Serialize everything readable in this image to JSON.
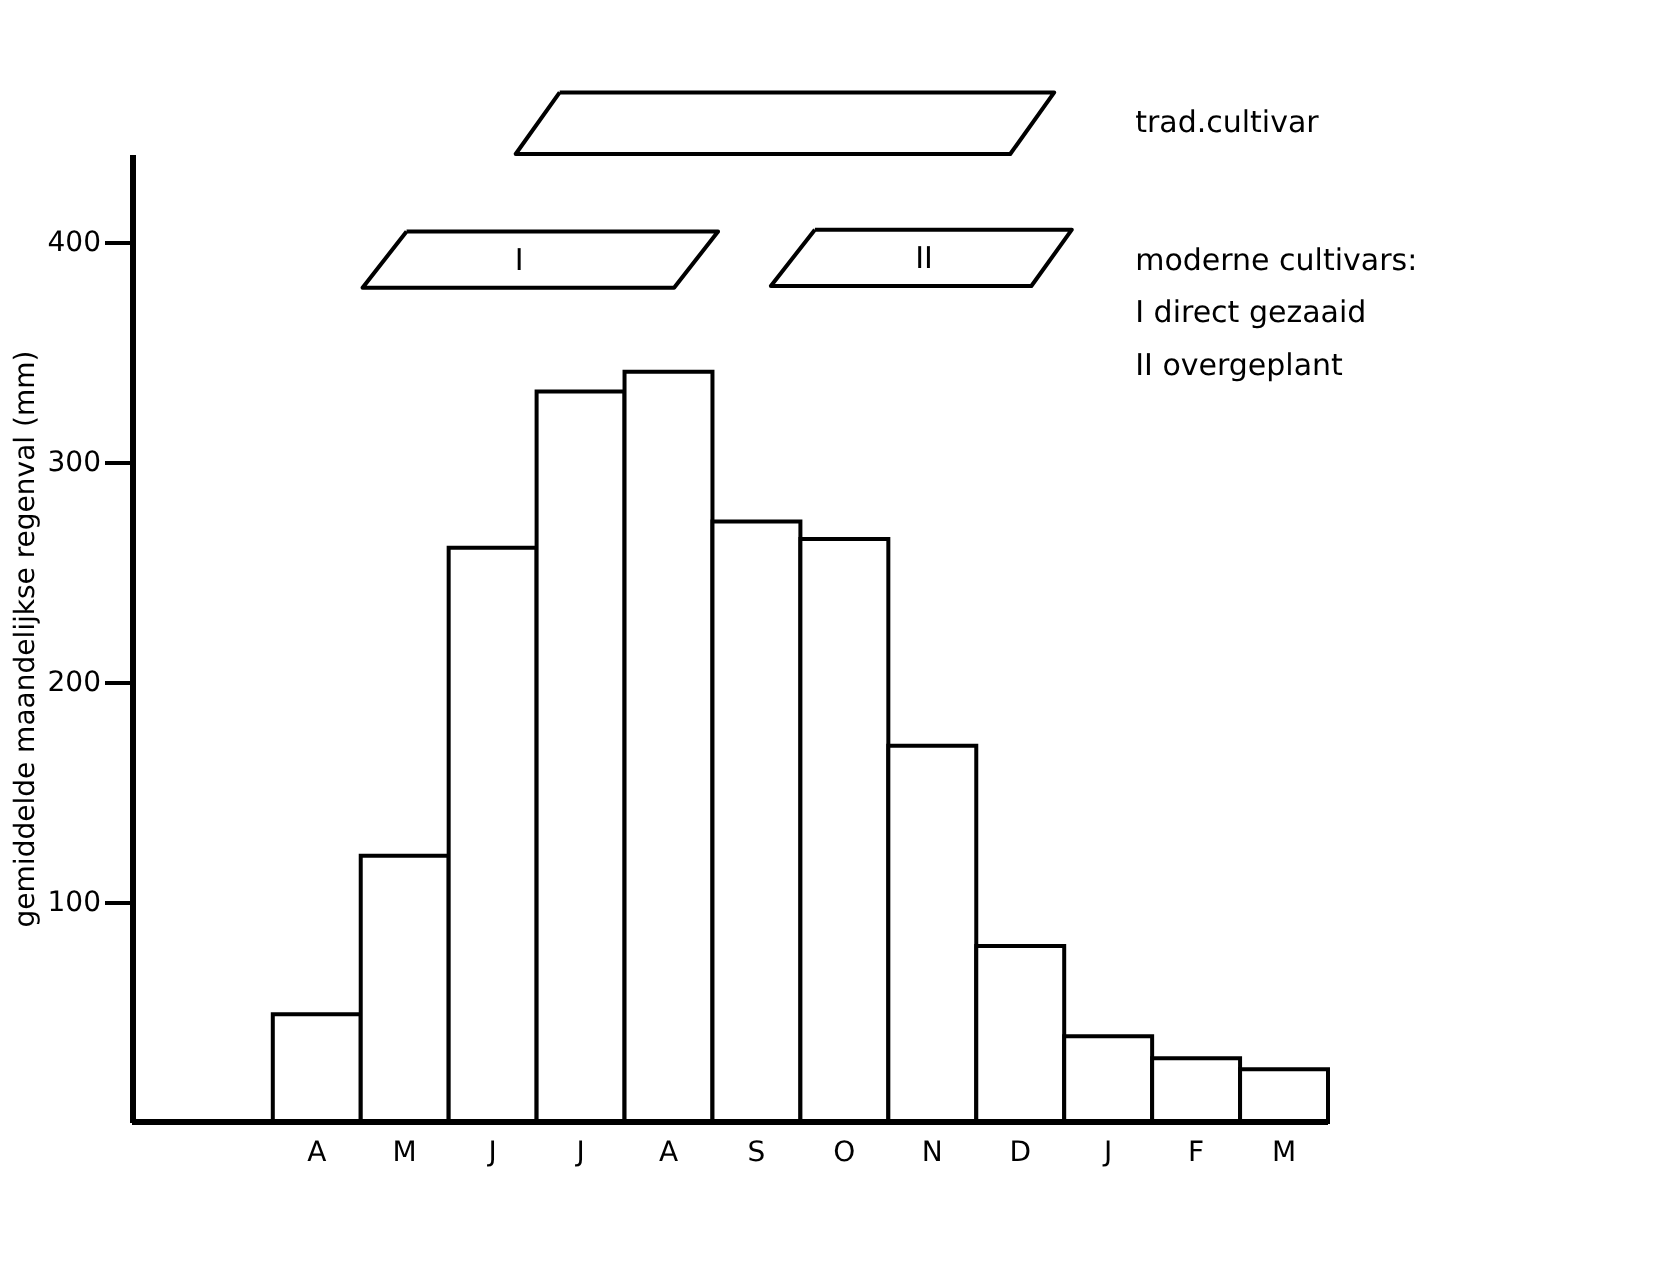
{
  "chart_data": {
    "type": "bar",
    "categories": [
      "A",
      "M",
      "J",
      "J",
      "A",
      "S",
      "O",
      "N",
      "D",
      "J",
      "F",
      "M"
    ],
    "values": [
      49,
      121,
      261,
      332,
      341,
      273,
      265,
      171,
      80,
      39,
      29,
      24
    ],
    "color": "#ffffff",
    "ylabel": "gemiddelde maandelijkse regenval (mm)",
    "ylim": [
      0,
      440
    ],
    "yticks": [
      100,
      200,
      300,
      400
    ],
    "annotations": [
      "trad.cultivar",
      "moderne cultivars:",
      "I direct gezaaid",
      "II overgeplant",
      "I",
      "II"
    ]
  }
}
